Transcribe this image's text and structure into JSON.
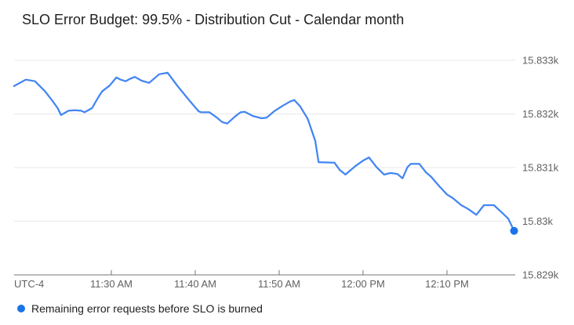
{
  "title": "SLO Error Budget: 99.5% - Distribution Cut - Calendar month",
  "legend": {
    "label": "Remaining error requests before SLO is burned",
    "marker_color": "#1a73e8"
  },
  "colors": {
    "line": "#4285f4",
    "endpoint": "#1a73e8",
    "gridline": "#e8e8e8",
    "axis": "#757575",
    "axis_label": "#616161",
    "title_text": "#1f1f1f"
  },
  "chart_data": {
    "type": "line",
    "title": "SLO Error Budget: 99.5% - Distribution Cut - Calendar month",
    "x_axis_note": "UTC-4",
    "x_unit": "time of day, minutes since midnight (UTC-4)",
    "y_unit": "remaining error requests before SLO is burned",
    "xlim_minutes": [
      678.2,
      738.6
    ],
    "ylim": [
      15829,
      15833.17
    ],
    "grid": "horizontal",
    "legend_position": "bottom-left",
    "x_ticks": [
      {
        "minutes": 690,
        "label": "11:30 AM"
      },
      {
        "minutes": 700,
        "label": "11:40 AM"
      },
      {
        "minutes": 710,
        "label": "11:50 AM"
      },
      {
        "minutes": 720,
        "label": "12:00 PM"
      },
      {
        "minutes": 730,
        "label": "12:10 PM"
      }
    ],
    "y_ticks": [
      {
        "value": 15833,
        "label": "15.833k"
      },
      {
        "value": 15832,
        "label": "15.832k"
      },
      {
        "value": 15831,
        "label": "15.831k"
      },
      {
        "value": 15830,
        "label": "15.83k"
      },
      {
        "value": 15829,
        "label": "15.829k"
      }
    ],
    "series": [
      {
        "name": "Remaining error requests before SLO is burned",
        "color": "#4285f4",
        "endpoint_marker": true,
        "points_t_minutes_value": [
          [
            678.4,
            15832.52
          ],
          [
            679.8,
            15832.64
          ],
          [
            680.9,
            15832.61
          ],
          [
            682.1,
            15832.42
          ],
          [
            683.0,
            15832.24
          ],
          [
            683.6,
            15832.11
          ],
          [
            684.0,
            15831.98
          ],
          [
            684.9,
            15832.06
          ],
          [
            685.6,
            15832.07
          ],
          [
            686.4,
            15832.06
          ],
          [
            686.8,
            15832.03
          ],
          [
            687.7,
            15832.11
          ],
          [
            688.4,
            15832.3
          ],
          [
            688.9,
            15832.42
          ],
          [
            689.8,
            15832.53
          ],
          [
            690.6,
            15832.68
          ],
          [
            691.1,
            15832.64
          ],
          [
            691.7,
            15832.61
          ],
          [
            692.3,
            15832.66
          ],
          [
            692.8,
            15832.69
          ],
          [
            693.6,
            15832.62
          ],
          [
            694.5,
            15832.58
          ],
          [
            695.7,
            15832.74
          ],
          [
            696.7,
            15832.77
          ],
          [
            697.9,
            15832.52
          ],
          [
            699.2,
            15832.27
          ],
          [
            700.4,
            15832.05
          ],
          [
            700.7,
            15832.03
          ],
          [
            701.7,
            15832.03
          ],
          [
            702.6,
            15831.93
          ],
          [
            703.2,
            15831.85
          ],
          [
            703.8,
            15831.82
          ],
          [
            704.8,
            15831.96
          ],
          [
            705.4,
            15832.03
          ],
          [
            705.9,
            15832.04
          ],
          [
            706.9,
            15831.96
          ],
          [
            707.9,
            15831.92
          ],
          [
            708.5,
            15831.93
          ],
          [
            709.4,
            15832.05
          ],
          [
            710.4,
            15832.15
          ],
          [
            711.3,
            15832.23
          ],
          [
            711.8,
            15832.26
          ],
          [
            712.5,
            15832.14
          ],
          [
            713.4,
            15831.91
          ],
          [
            714.3,
            15831.5
          ],
          [
            714.7,
            15831.1
          ],
          [
            716.6,
            15831.09
          ],
          [
            717.2,
            15830.96
          ],
          [
            717.9,
            15830.87
          ],
          [
            719.1,
            15831.03
          ],
          [
            720.0,
            15831.13
          ],
          [
            720.7,
            15831.19
          ],
          [
            721.6,
            15831.01
          ],
          [
            722.5,
            15830.87
          ],
          [
            723.3,
            15830.9
          ],
          [
            724.1,
            15830.88
          ],
          [
            724.7,
            15830.8
          ],
          [
            725.3,
            15831.01
          ],
          [
            725.7,
            15831.07
          ],
          [
            726.7,
            15831.07
          ],
          [
            727.5,
            15830.91
          ],
          [
            728.1,
            15830.83
          ],
          [
            729.1,
            15830.65
          ],
          [
            730.0,
            15830.5
          ],
          [
            730.7,
            15830.43
          ],
          [
            731.7,
            15830.3
          ],
          [
            732.5,
            15830.23
          ],
          [
            733.5,
            15830.12
          ],
          [
            734.4,
            15830.3
          ],
          [
            735.6,
            15830.3
          ],
          [
            736.5,
            15830.17
          ],
          [
            737.3,
            15830.05
          ],
          [
            738.0,
            15829.82
          ]
        ]
      }
    ]
  }
}
